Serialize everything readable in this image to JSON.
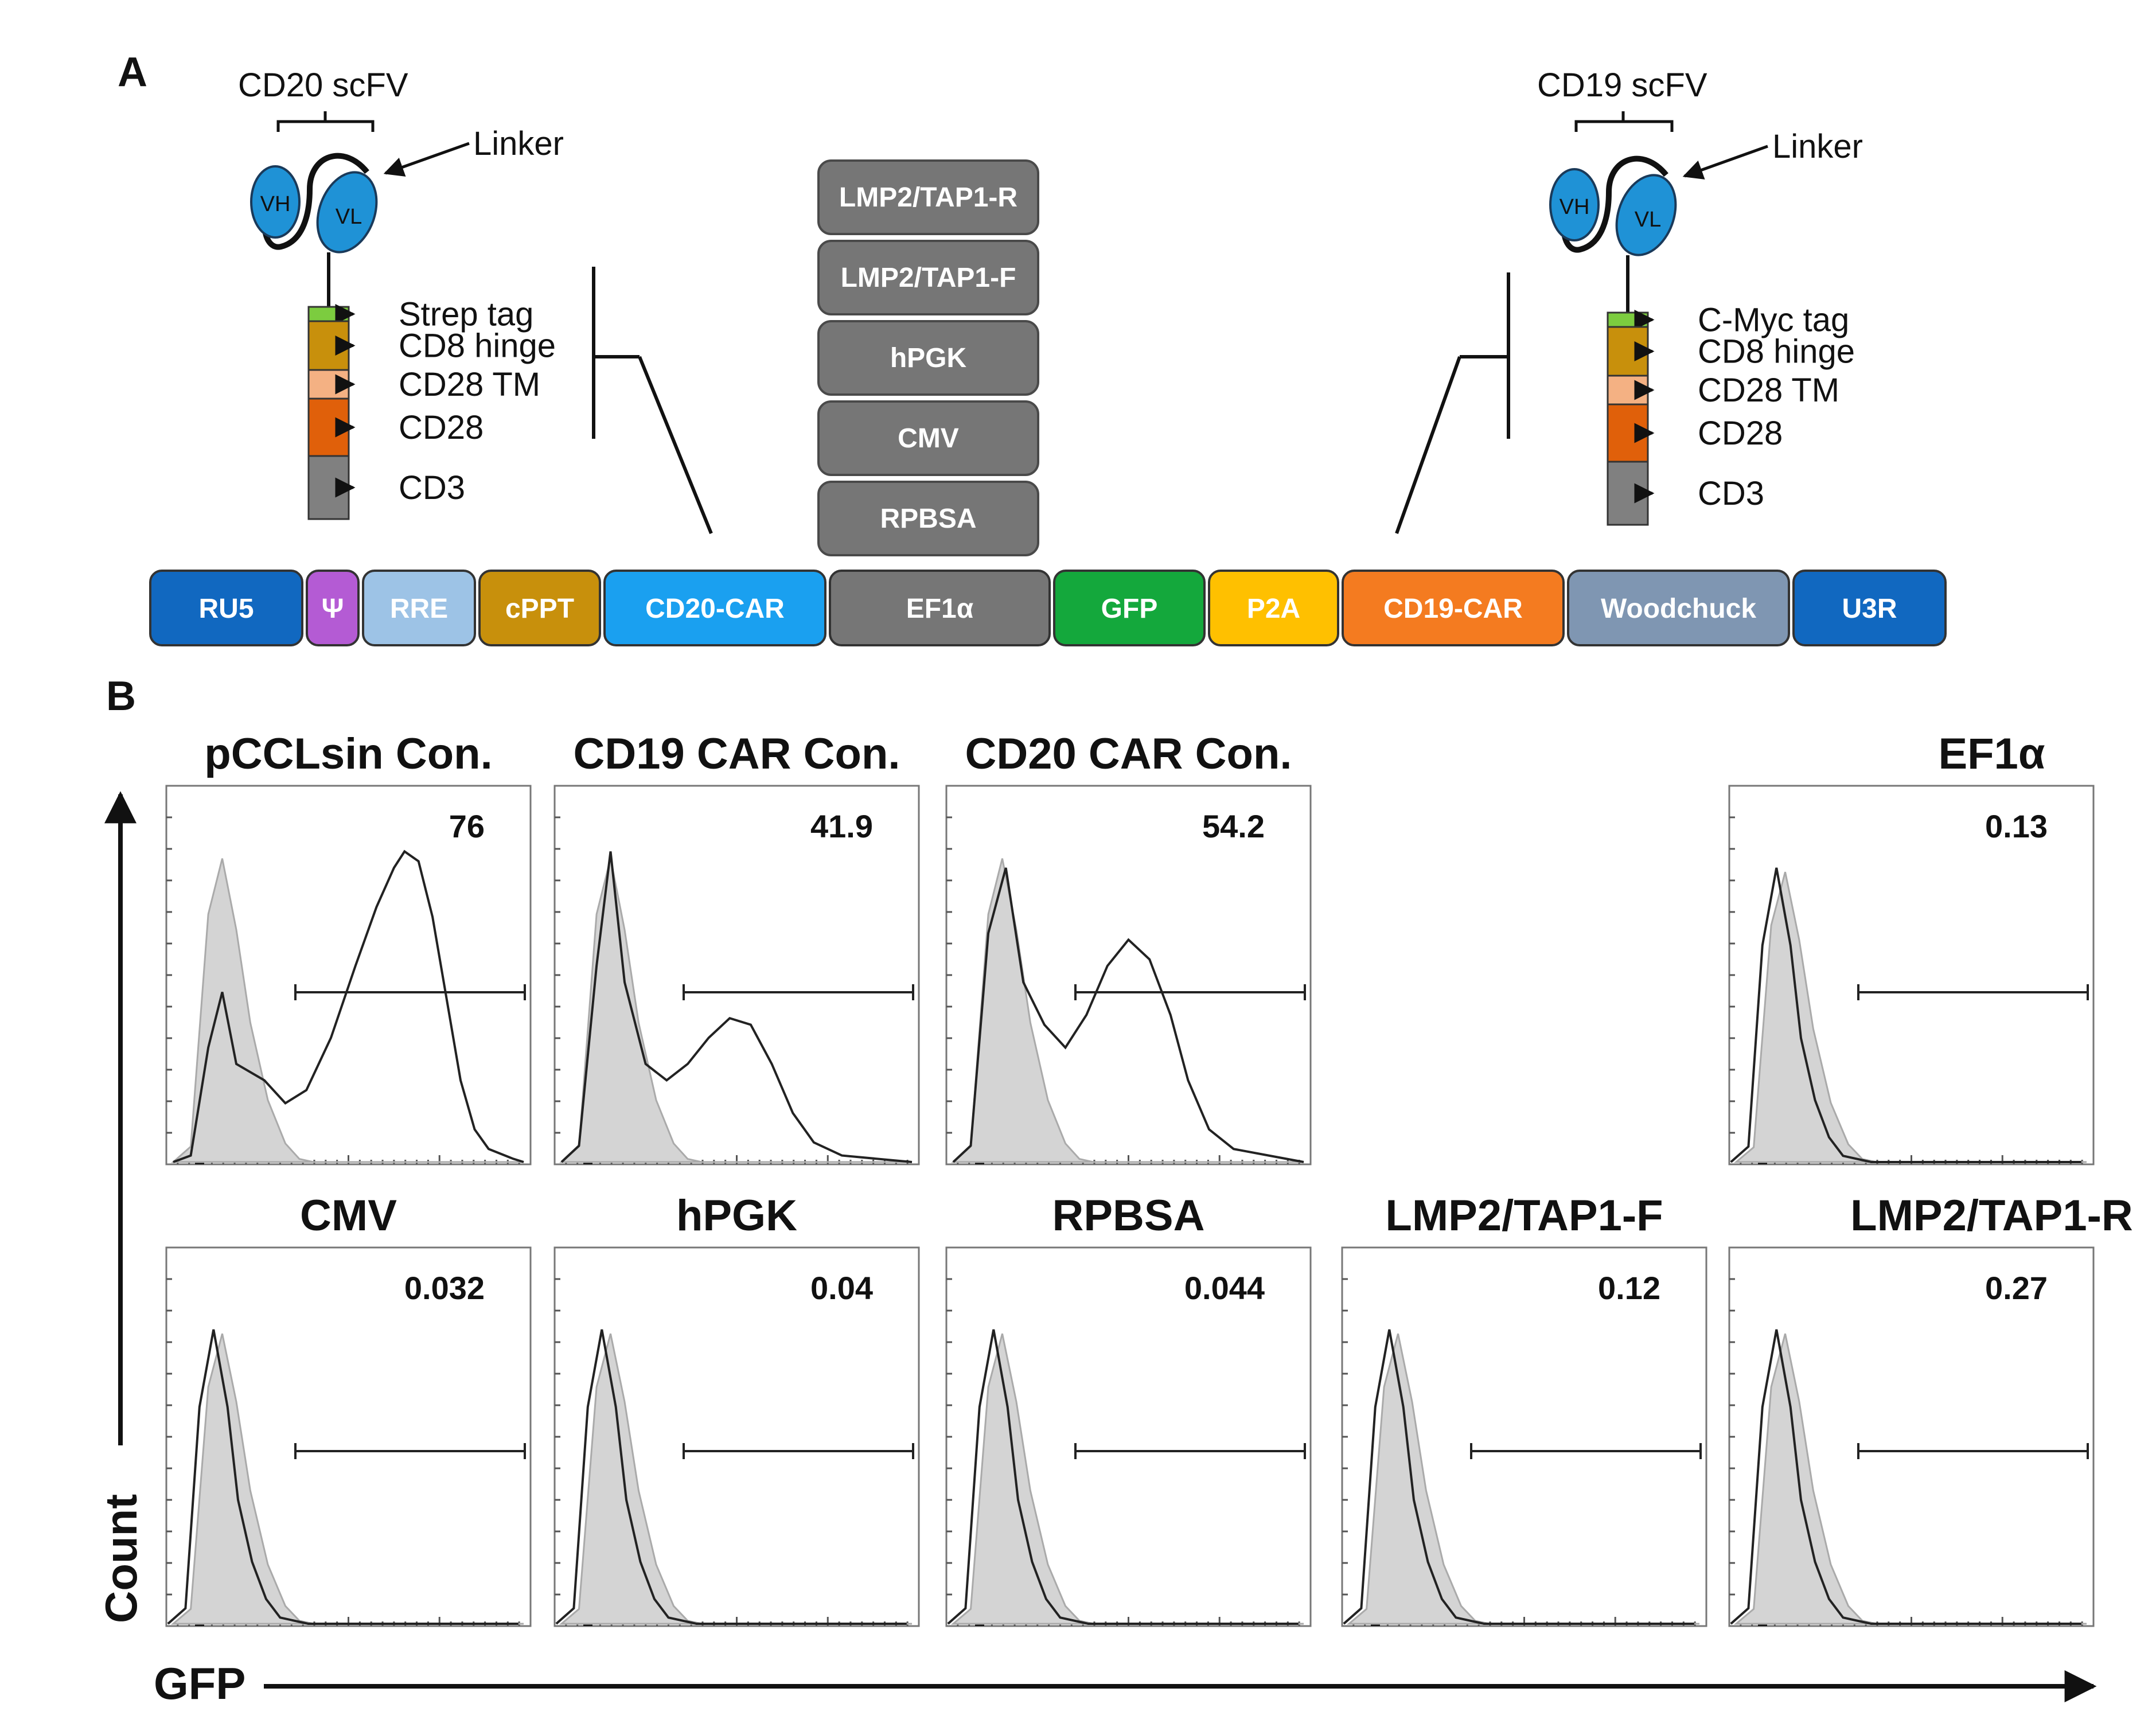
{
  "panel_a": {
    "label": "A",
    "left_car": {
      "scfv_label": "CD20 scFV",
      "linker": "Linker",
      "vh": "VH",
      "vl": "VL",
      "domains": [
        {
          "label": "Strep tag",
          "color": "#7ccc3f"
        },
        {
          "label": "CD8 hinge",
          "color": "#c8900c"
        },
        {
          "label": "CD28 TM",
          "color": "#f4b183"
        },
        {
          "label": "CD28",
          "color": "#e0600a"
        },
        {
          "label": "CD3",
          "color": "#808080"
        }
      ]
    },
    "right_car": {
      "scfv_label": "CD19 scFV",
      "linker": "Linker",
      "vh": "VH",
      "vl": "VL",
      "domains": [
        {
          "label": "C-Myc tag",
          "color": "#7ccc3f"
        },
        {
          "label": "CD8 hinge",
          "color": "#c8900c"
        },
        {
          "label": "CD28 TM",
          "color": "#f4b183"
        },
        {
          "label": "CD28",
          "color": "#e0600a"
        },
        {
          "label": "CD3",
          "color": "#808080"
        }
      ]
    },
    "promoters": [
      "LMP2/TAP1-R",
      "LMP2/TAP1-F",
      "hPGK",
      "CMV",
      "RPBSA"
    ],
    "vector": [
      {
        "label": "RU5",
        "color": "#1168c0"
      },
      {
        "label": "Ψ",
        "color": "#b45bd4"
      },
      {
        "label": "RRE",
        "color": "#9dc3e6"
      },
      {
        "label": "cPPT",
        "color": "#c8900c"
      },
      {
        "label": "CD20-CAR",
        "color": "#1aa0f0"
      },
      {
        "label": "EF1α",
        "color": "#767676"
      },
      {
        "label": "GFP",
        "color": "#14a83c"
      },
      {
        "label": "P2A",
        "color": "#ffc000"
      },
      {
        "label": "CD19-CAR",
        "color": "#f47b20"
      },
      {
        "label": "Woodchuck",
        "color": "#7f96b2"
      },
      {
        "label": "U3R",
        "color": "#1168c0"
      }
    ],
    "vh_color": "#1f92d6"
  },
  "panel_b": {
    "label": "B",
    "y_axis_label": "Count",
    "x_axis_label": "GFP",
    "histograms": [
      {
        "title": "pCCLsin Con.",
        "value": "76"
      },
      {
        "title": "CD19 CAR Con.",
        "value": "41.9"
      },
      {
        "title": "CD20 CAR Con.",
        "value": "54.2"
      },
      {
        "title": "EF1α",
        "value": "0.13"
      },
      {
        "title": "CMV",
        "value": "0.032"
      },
      {
        "title": "hPGK",
        "value": "0.04"
      },
      {
        "title": "RPBSA",
        "value": "0.044"
      },
      {
        "title": "LMP2/TAP1-F",
        "value": "0.12"
      },
      {
        "title": "LMP2/TAP1-R",
        "value": "0.27"
      }
    ]
  }
}
